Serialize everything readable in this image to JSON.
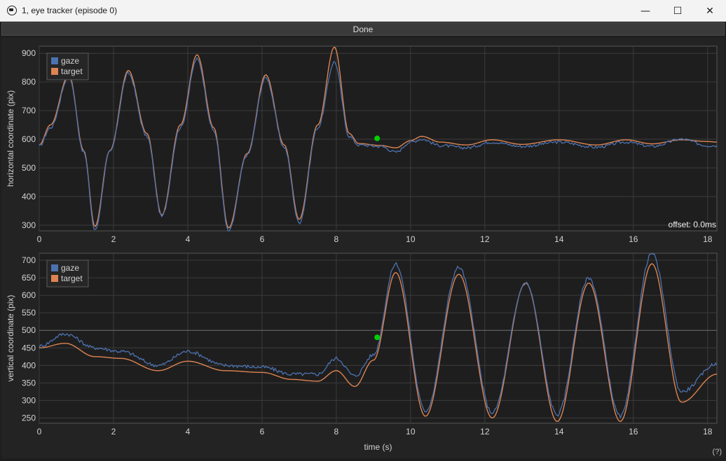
{
  "window": {
    "title": "1, eye tracker (episode 0)",
    "icon": "eye-tracker-app-icon",
    "controls": {
      "minimize": "—",
      "maximize": "☐",
      "close": "✕"
    }
  },
  "done_label": "Done",
  "help_label": "(?)",
  "colors": {
    "gaze": "#4c72b0",
    "target": "#dd8452",
    "marker": "#00d000",
    "grid": "#3c3c3c",
    "text": "#d2d2d2"
  },
  "chart_data": [
    {
      "type": "line",
      "title": "",
      "ylabel": "horizontal coordinate (pix)",
      "xlabel": "",
      "xlim": [
        0,
        18.25
      ],
      "ylim": [
        280,
        925
      ],
      "xticks": [
        0,
        2,
        4,
        6,
        8,
        10,
        12,
        14,
        16,
        18
      ],
      "yticks": [
        300,
        400,
        500,
        600,
        700,
        800,
        900
      ],
      "legend": [
        "gaze",
        "target"
      ],
      "legend_position": "top-left",
      "grid": true,
      "annotation": "offset: 0.0ms",
      "marker_point": {
        "x": 9.1,
        "y": 603
      },
      "series": [
        {
          "name": "target",
          "x": [
            0,
            0.3,
            0.8,
            1.2,
            1.5,
            1.9,
            2.4,
            2.9,
            3.3,
            3.8,
            4.25,
            4.7,
            5.1,
            5.6,
            6.1,
            6.6,
            7.0,
            7.5,
            7.95,
            8.35,
            8.6,
            9.2,
            9.6,
            10.0,
            10.3,
            10.8,
            11.5,
            12.2,
            13.0,
            14.0,
            15.0,
            15.8,
            16.5,
            17.3,
            18.0,
            18.25
          ],
          "y": [
            580,
            650,
            825,
            560,
            295,
            560,
            840,
            620,
            335,
            650,
            895,
            640,
            290,
            550,
            825,
            580,
            320,
            650,
            922,
            620,
            585,
            578,
            570,
            595,
            610,
            590,
            580,
            598,
            582,
            598,
            580,
            598,
            584,
            598,
            592,
            590
          ]
        },
        {
          "name": "gaze",
          "x": [
            0,
            0.3,
            0.8,
            1.2,
            1.5,
            1.9,
            2.4,
            2.9,
            3.3,
            3.8,
            4.25,
            4.7,
            5.1,
            5.6,
            6.1,
            6.6,
            7.0,
            7.5,
            7.95,
            8.35,
            8.6,
            9.2,
            9.6,
            10.0,
            10.3,
            10.8,
            11.5,
            12.2,
            13.0,
            14.0,
            15.0,
            15.8,
            16.5,
            17.3,
            18.0,
            18.25
          ],
          "y": [
            575,
            640,
            820,
            555,
            282,
            555,
            830,
            610,
            330,
            640,
            880,
            630,
            278,
            545,
            815,
            572,
            308,
            640,
            870,
            610,
            580,
            575,
            555,
            590,
            600,
            578,
            570,
            590,
            575,
            590,
            572,
            590,
            575,
            600,
            578,
            578
          ]
        }
      ]
    },
    {
      "type": "line",
      "title": "",
      "ylabel": "vertical coordinate (pix)",
      "xlabel": "time (s)",
      "xlim": [
        0,
        18.25
      ],
      "ylim": [
        235,
        720
      ],
      "xticks": [
        0,
        2,
        4,
        6,
        8,
        10,
        12,
        14,
        16,
        18
      ],
      "yticks": [
        250,
        300,
        350,
        400,
        450,
        500,
        550,
        600,
        650,
        700
      ],
      "hline": 500,
      "legend": [
        "gaze",
        "target"
      ],
      "legend_position": "top-left",
      "grid": true,
      "marker_point": {
        "x": 9.1,
        "y": 480
      },
      "series": [
        {
          "name": "target",
          "x": [
            0,
            0.7,
            1.5,
            2.2,
            3.2,
            4.0,
            5.0,
            6.0,
            6.8,
            7.5,
            8.0,
            8.5,
            9.0,
            9.6,
            10.4,
            11.3,
            12.2,
            13.1,
            13.95,
            14.8,
            15.65,
            16.5,
            17.3,
            18.25
          ],
          "y": [
            450,
            463,
            425,
            420,
            385,
            412,
            385,
            380,
            360,
            355,
            385,
            340,
            415,
            665,
            255,
            660,
            250,
            635,
            240,
            635,
            240,
            690,
            295,
            375
          ]
        },
        {
          "name": "gaze",
          "x": [
            0,
            0.7,
            1.5,
            2.2,
            3.2,
            4.0,
            5.0,
            6.0,
            6.8,
            7.5,
            8.0,
            8.5,
            9.0,
            9.6,
            10.4,
            11.3,
            12.2,
            13.1,
            13.95,
            14.8,
            15.65,
            16.5,
            17.3,
            18.25
          ],
          "y": [
            455,
            490,
            450,
            440,
            400,
            440,
            400,
            395,
            375,
            375,
            420,
            370,
            430,
            690,
            270,
            680,
            265,
            635,
            260,
            650,
            255,
            720,
            325,
            405
          ]
        }
      ]
    }
  ]
}
